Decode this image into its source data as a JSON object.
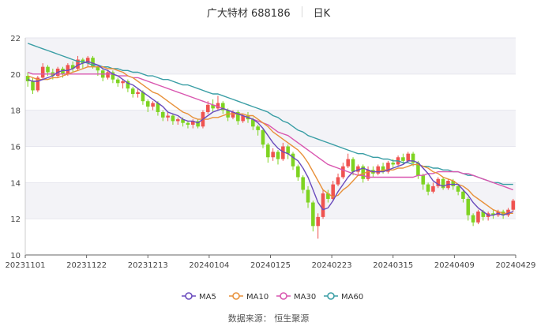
{
  "header": {
    "title": "广大特材 688186",
    "period": "日K"
  },
  "footer": {
    "source": "数据来源： 恒生聚源"
  },
  "chart_data": {
    "type": "candlestick",
    "title": "广大特材 688186",
    "ylim": [
      10,
      22
    ],
    "yticks": [
      10,
      12,
      14,
      16,
      18,
      20,
      22
    ],
    "xticks": [
      "20231101",
      "20231122",
      "20231213",
      "20240104",
      "20240125",
      "20240223",
      "20240315",
      "20240409",
      "20240429"
    ],
    "colors": {
      "up": "#ef5350",
      "down": "#7ed321",
      "ma5": "#6a4bbd",
      "ma10": "#e8913a",
      "ma30": "#d957b0",
      "ma60": "#3a9ea5",
      "grid_band": "#f3f3f7",
      "axis": "#666666"
    },
    "legend": [
      {
        "name": "MA5",
        "color": "#6a4bbd"
      },
      {
        "name": "MA10",
        "color": "#e8913a"
      },
      {
        "name": "MA30",
        "color": "#d957b0"
      },
      {
        "name": "MA60",
        "color": "#3a9ea5"
      }
    ],
    "candles": [
      [
        19.9,
        19.6,
        20.1,
        19.3
      ],
      [
        19.6,
        19.1,
        19.8,
        18.9
      ],
      [
        19.1,
        19.8,
        19.9,
        19.0
      ],
      [
        19.8,
        20.4,
        20.6,
        19.7
      ],
      [
        20.4,
        20.1,
        20.5,
        19.9
      ],
      [
        20.1,
        19.9,
        20.3,
        19.7
      ],
      [
        19.9,
        20.3,
        20.4,
        19.8
      ],
      [
        20.3,
        20.0,
        20.4,
        19.8
      ],
      [
        20.0,
        20.5,
        20.6,
        19.9
      ],
      [
        20.5,
        20.3,
        20.7,
        20.1
      ],
      [
        20.3,
        20.8,
        21.0,
        20.2
      ],
      [
        20.8,
        20.6,
        20.9,
        20.3
      ],
      [
        20.6,
        20.9,
        21.0,
        20.4
      ],
      [
        20.9,
        20.4,
        21.0,
        20.3
      ],
      [
        20.4,
        20.2,
        20.5,
        19.9
      ],
      [
        20.2,
        19.8,
        20.3,
        19.6
      ],
      [
        19.8,
        20.1,
        20.2,
        19.7
      ],
      [
        20.1,
        19.7,
        20.2,
        19.5
      ],
      [
        19.7,
        19.5,
        19.8,
        19.3
      ],
      [
        19.5,
        19.6,
        19.7,
        19.2
      ],
      [
        19.6,
        19.2,
        19.7,
        19.0
      ],
      [
        19.2,
        18.9,
        19.3,
        18.7
      ],
      [
        18.9,
        19.0,
        19.2,
        18.7
      ],
      [
        19.0,
        18.5,
        19.1,
        18.3
      ],
      [
        18.5,
        18.2,
        18.6,
        17.9
      ],
      [
        18.2,
        18.4,
        18.5,
        18.0
      ],
      [
        18.4,
        17.9,
        18.5,
        17.7
      ],
      [
        17.9,
        17.6,
        18.0,
        17.4
      ],
      [
        17.6,
        17.7,
        17.9,
        17.4
      ],
      [
        17.7,
        17.4,
        17.8,
        17.2
      ],
      [
        17.4,
        17.5,
        17.6,
        17.2
      ],
      [
        17.5,
        17.3,
        17.6,
        17.1
      ],
      [
        17.3,
        17.2,
        17.4,
        17.0
      ],
      [
        17.2,
        17.4,
        17.5,
        17.0
      ],
      [
        17.4,
        17.1,
        17.5,
        17.0
      ],
      [
        17.1,
        17.9,
        18.0,
        17.0
      ],
      [
        17.9,
        18.3,
        18.5,
        17.8
      ],
      [
        18.3,
        18.1,
        18.6,
        17.9
      ],
      [
        18.1,
        18.4,
        18.8,
        18.0
      ],
      [
        18.4,
        18.0,
        18.5,
        17.8
      ],
      [
        18.0,
        17.6,
        18.1,
        17.4
      ],
      [
        17.6,
        17.9,
        18.0,
        17.5
      ],
      [
        17.9,
        17.4,
        18.0,
        17.2
      ],
      [
        17.4,
        17.7,
        17.8,
        17.3
      ],
      [
        17.7,
        17.5,
        17.9,
        17.3
      ],
      [
        17.5,
        17.1,
        17.6,
        16.9
      ],
      [
        17.1,
        16.9,
        17.2,
        16.6
      ],
      [
        16.9,
        16.1,
        17.0,
        15.9
      ],
      [
        16.1,
        15.4,
        16.2,
        15.1
      ],
      [
        15.4,
        15.7,
        15.9,
        15.2
      ],
      [
        15.7,
        15.3,
        15.8,
        15.0
      ],
      [
        15.3,
        16.0,
        16.2,
        15.2
      ],
      [
        16.0,
        15.6,
        16.1,
        15.3
      ],
      [
        15.6,
        14.9,
        15.7,
        14.7
      ],
      [
        14.9,
        14.3,
        15.0,
        14.1
      ],
      [
        14.3,
        13.6,
        14.4,
        13.4
      ],
      [
        13.6,
        12.9,
        13.8,
        12.6
      ],
      [
        12.9,
        11.6,
        13.0,
        11.3
      ],
      [
        11.6,
        12.1,
        12.3,
        10.9
      ],
      [
        12.1,
        13.4,
        13.6,
        12.0
      ],
      [
        13.4,
        13.1,
        13.6,
        12.9
      ],
      [
        13.1,
        13.9,
        14.1,
        13.0
      ],
      [
        13.9,
        14.3,
        14.5,
        13.8
      ],
      [
        14.3,
        14.9,
        15.1,
        14.2
      ],
      [
        14.9,
        15.3,
        15.6,
        14.8
      ],
      [
        15.3,
        14.6,
        15.4,
        14.4
      ],
      [
        14.6,
        14.9,
        15.0,
        14.4
      ],
      [
        14.9,
        14.2,
        15.0,
        14.0
      ],
      [
        14.2,
        14.7,
        14.9,
        14.1
      ],
      [
        14.7,
        14.5,
        14.9,
        14.3
      ],
      [
        14.5,
        14.9,
        15.0,
        14.4
      ],
      [
        14.9,
        14.6,
        15.1,
        14.5
      ],
      [
        14.6,
        15.1,
        15.2,
        14.5
      ],
      [
        15.1,
        15.0,
        15.3,
        14.8
      ],
      [
        15.0,
        15.4,
        15.5,
        14.9
      ],
      [
        15.4,
        15.2,
        15.6,
        15.0
      ],
      [
        15.2,
        15.6,
        15.7,
        15.1
      ],
      [
        15.6,
        15.1,
        15.7,
        14.9
      ],
      [
        15.1,
        14.4,
        15.2,
        14.2
      ],
      [
        14.4,
        13.9,
        14.5,
        13.6
      ],
      [
        13.9,
        13.5,
        14.0,
        13.3
      ],
      [
        13.5,
        13.8,
        14.0,
        13.4
      ],
      [
        13.8,
        14.2,
        14.3,
        13.7
      ],
      [
        14.2,
        13.7,
        14.3,
        13.6
      ],
      [
        13.7,
        14.1,
        14.2,
        13.6
      ],
      [
        14.1,
        13.8,
        14.2,
        13.6
      ],
      [
        13.8,
        13.5,
        13.9,
        13.3
      ],
      [
        13.5,
        13.1,
        13.6,
        12.9
      ],
      [
        13.1,
        12.2,
        13.2,
        11.9
      ],
      [
        12.2,
        11.8,
        12.3,
        11.6
      ],
      [
        11.8,
        12.4,
        12.5,
        11.7
      ],
      [
        12.4,
        12.1,
        12.5,
        11.9
      ],
      [
        12.1,
        12.3,
        12.4,
        11.9
      ],
      [
        12.3,
        12.2,
        12.5,
        12.0
      ],
      [
        12.2,
        12.4,
        12.5,
        12.1
      ],
      [
        12.4,
        12.2,
        12.5,
        12.0
      ],
      [
        12.2,
        12.5,
        12.6,
        12.1
      ],
      [
        12.5,
        13.0,
        13.1,
        12.4
      ]
    ],
    "ma5": [
      19.7,
      19.6,
      19.6,
      19.7,
      19.8,
      19.9,
      20.1,
      20.2,
      20.2,
      20.3,
      20.5,
      20.6,
      20.7,
      20.6,
      20.5,
      20.3,
      20.2,
      20.0,
      19.9,
      19.7,
      19.5,
      19.4,
      19.2,
      19.0,
      18.8,
      18.6,
      18.4,
      18.2,
      17.9,
      17.8,
      17.7,
      17.5,
      17.4,
      17.4,
      17.3,
      17.5,
      17.7,
      17.9,
      18.0,
      18.1,
      18.0,
      17.9,
      17.8,
      17.7,
      17.6,
      17.5,
      17.3,
      17.0,
      16.6,
      16.2,
      15.9,
      15.7,
      15.6,
      15.4,
      15.2,
      14.8,
      14.3,
      13.6,
      12.9,
      12.5,
      12.6,
      13.0,
      13.5,
      13.9,
      14.3,
      14.6,
      14.7,
      14.8,
      14.7,
      14.6,
      14.6,
      14.6,
      14.7,
      14.8,
      14.9,
      15.0,
      15.2,
      15.2,
      15.1,
      14.8,
      14.5,
      14.1,
      13.9,
      13.8,
      13.9,
      13.9,
      13.9,
      13.6,
      13.3,
      12.9,
      12.6,
      12.4,
      12.2,
      12.2,
      12.3,
      12.2,
      12.3,
      12.4
    ],
    "ma10": [
      19.9,
      19.8,
      19.7,
      19.7,
      19.7,
      19.8,
      19.8,
      19.9,
      20.0,
      20.1,
      20.2,
      20.3,
      20.4,
      20.4,
      20.4,
      20.4,
      20.3,
      20.3,
      20.2,
      20.1,
      19.9,
      19.8,
      19.6,
      19.4,
      19.2,
      19.0,
      18.9,
      18.7,
      18.5,
      18.3,
      18.1,
      17.9,
      17.8,
      17.6,
      17.5,
      17.5,
      17.5,
      17.6,
      17.6,
      17.7,
      17.8,
      17.8,
      17.8,
      17.8,
      17.7,
      17.7,
      17.5,
      17.3,
      17.1,
      16.8,
      16.6,
      16.4,
      16.2,
      16.0,
      15.8,
      15.5,
      15.1,
      14.6,
      14.1,
      13.6,
      13.4,
      13.2,
      13.3,
      13.6,
      13.8,
      14.1,
      14.4,
      14.5,
      14.6,
      14.6,
      14.6,
      14.7,
      14.7,
      14.7,
      14.8,
      14.8,
      14.9,
      15.0,
      15.0,
      14.9,
      14.8,
      14.6,
      14.5,
      14.3,
      14.2,
      14.1,
      13.9,
      13.8,
      13.6,
      13.3,
      13.1,
      12.9,
      12.7,
      12.5,
      12.4,
      12.3,
      12.3,
      12.3
    ],
    "ma30": [
      20.1,
      20.0,
      20.0,
      20.0,
      20.0,
      20.0,
      20.0,
      20.0,
      20.0,
      20.0,
      20.0,
      20.0,
      20.0,
      20.0,
      20.0,
      20.0,
      20.0,
      20.0,
      19.9,
      19.9,
      19.9,
      19.8,
      19.8,
      19.7,
      19.6,
      19.5,
      19.4,
      19.3,
      19.2,
      19.1,
      19.0,
      18.9,
      18.8,
      18.7,
      18.6,
      18.5,
      18.4,
      18.3,
      18.2,
      18.1,
      18.0,
      17.9,
      17.8,
      17.7,
      17.6,
      17.5,
      17.4,
      17.3,
      17.2,
      17.0,
      16.8,
      16.7,
      16.6,
      16.4,
      16.2,
      16.0,
      15.8,
      15.6,
      15.4,
      15.2,
      15.0,
      14.9,
      14.8,
      14.7,
      14.6,
      14.5,
      14.4,
      14.4,
      14.3,
      14.3,
      14.3,
      14.3,
      14.3,
      14.3,
      14.3,
      14.3,
      14.3,
      14.3,
      14.4,
      14.4,
      14.5,
      14.5,
      14.6,
      14.6,
      14.6,
      14.6,
      14.6,
      14.5,
      14.5,
      14.4,
      14.3,
      14.2,
      14.1,
      14.0,
      13.9,
      13.8,
      13.7,
      13.6
    ],
    "ma60": [
      21.7,
      21.6,
      21.5,
      21.4,
      21.3,
      21.2,
      21.1,
      21.0,
      20.9,
      20.8,
      20.7,
      20.7,
      20.6,
      20.5,
      20.5,
      20.4,
      20.4,
      20.3,
      20.3,
      20.2,
      20.2,
      20.1,
      20.1,
      20.0,
      19.9,
      19.9,
      19.8,
      19.7,
      19.7,
      19.6,
      19.5,
      19.4,
      19.4,
      19.3,
      19.2,
      19.1,
      19.0,
      18.9,
      18.9,
      18.8,
      18.7,
      18.6,
      18.5,
      18.4,
      18.3,
      18.2,
      18.1,
      18.0,
      17.9,
      17.7,
      17.6,
      17.4,
      17.3,
      17.1,
      16.9,
      16.8,
      16.6,
      16.5,
      16.4,
      16.3,
      16.2,
      16.1,
      16.0,
      15.9,
      15.8,
      15.7,
      15.6,
      15.6,
      15.5,
      15.4,
      15.4,
      15.3,
      15.3,
      15.2,
      15.2,
      15.1,
      15.1,
      15.0,
      15.0,
      14.9,
      14.9,
      14.8,
      14.8,
      14.7,
      14.7,
      14.6,
      14.6,
      14.5,
      14.4,
      14.4,
      14.3,
      14.2,
      14.1,
      14.0,
      14.0,
      13.9,
      13.9,
      13.9
    ]
  }
}
